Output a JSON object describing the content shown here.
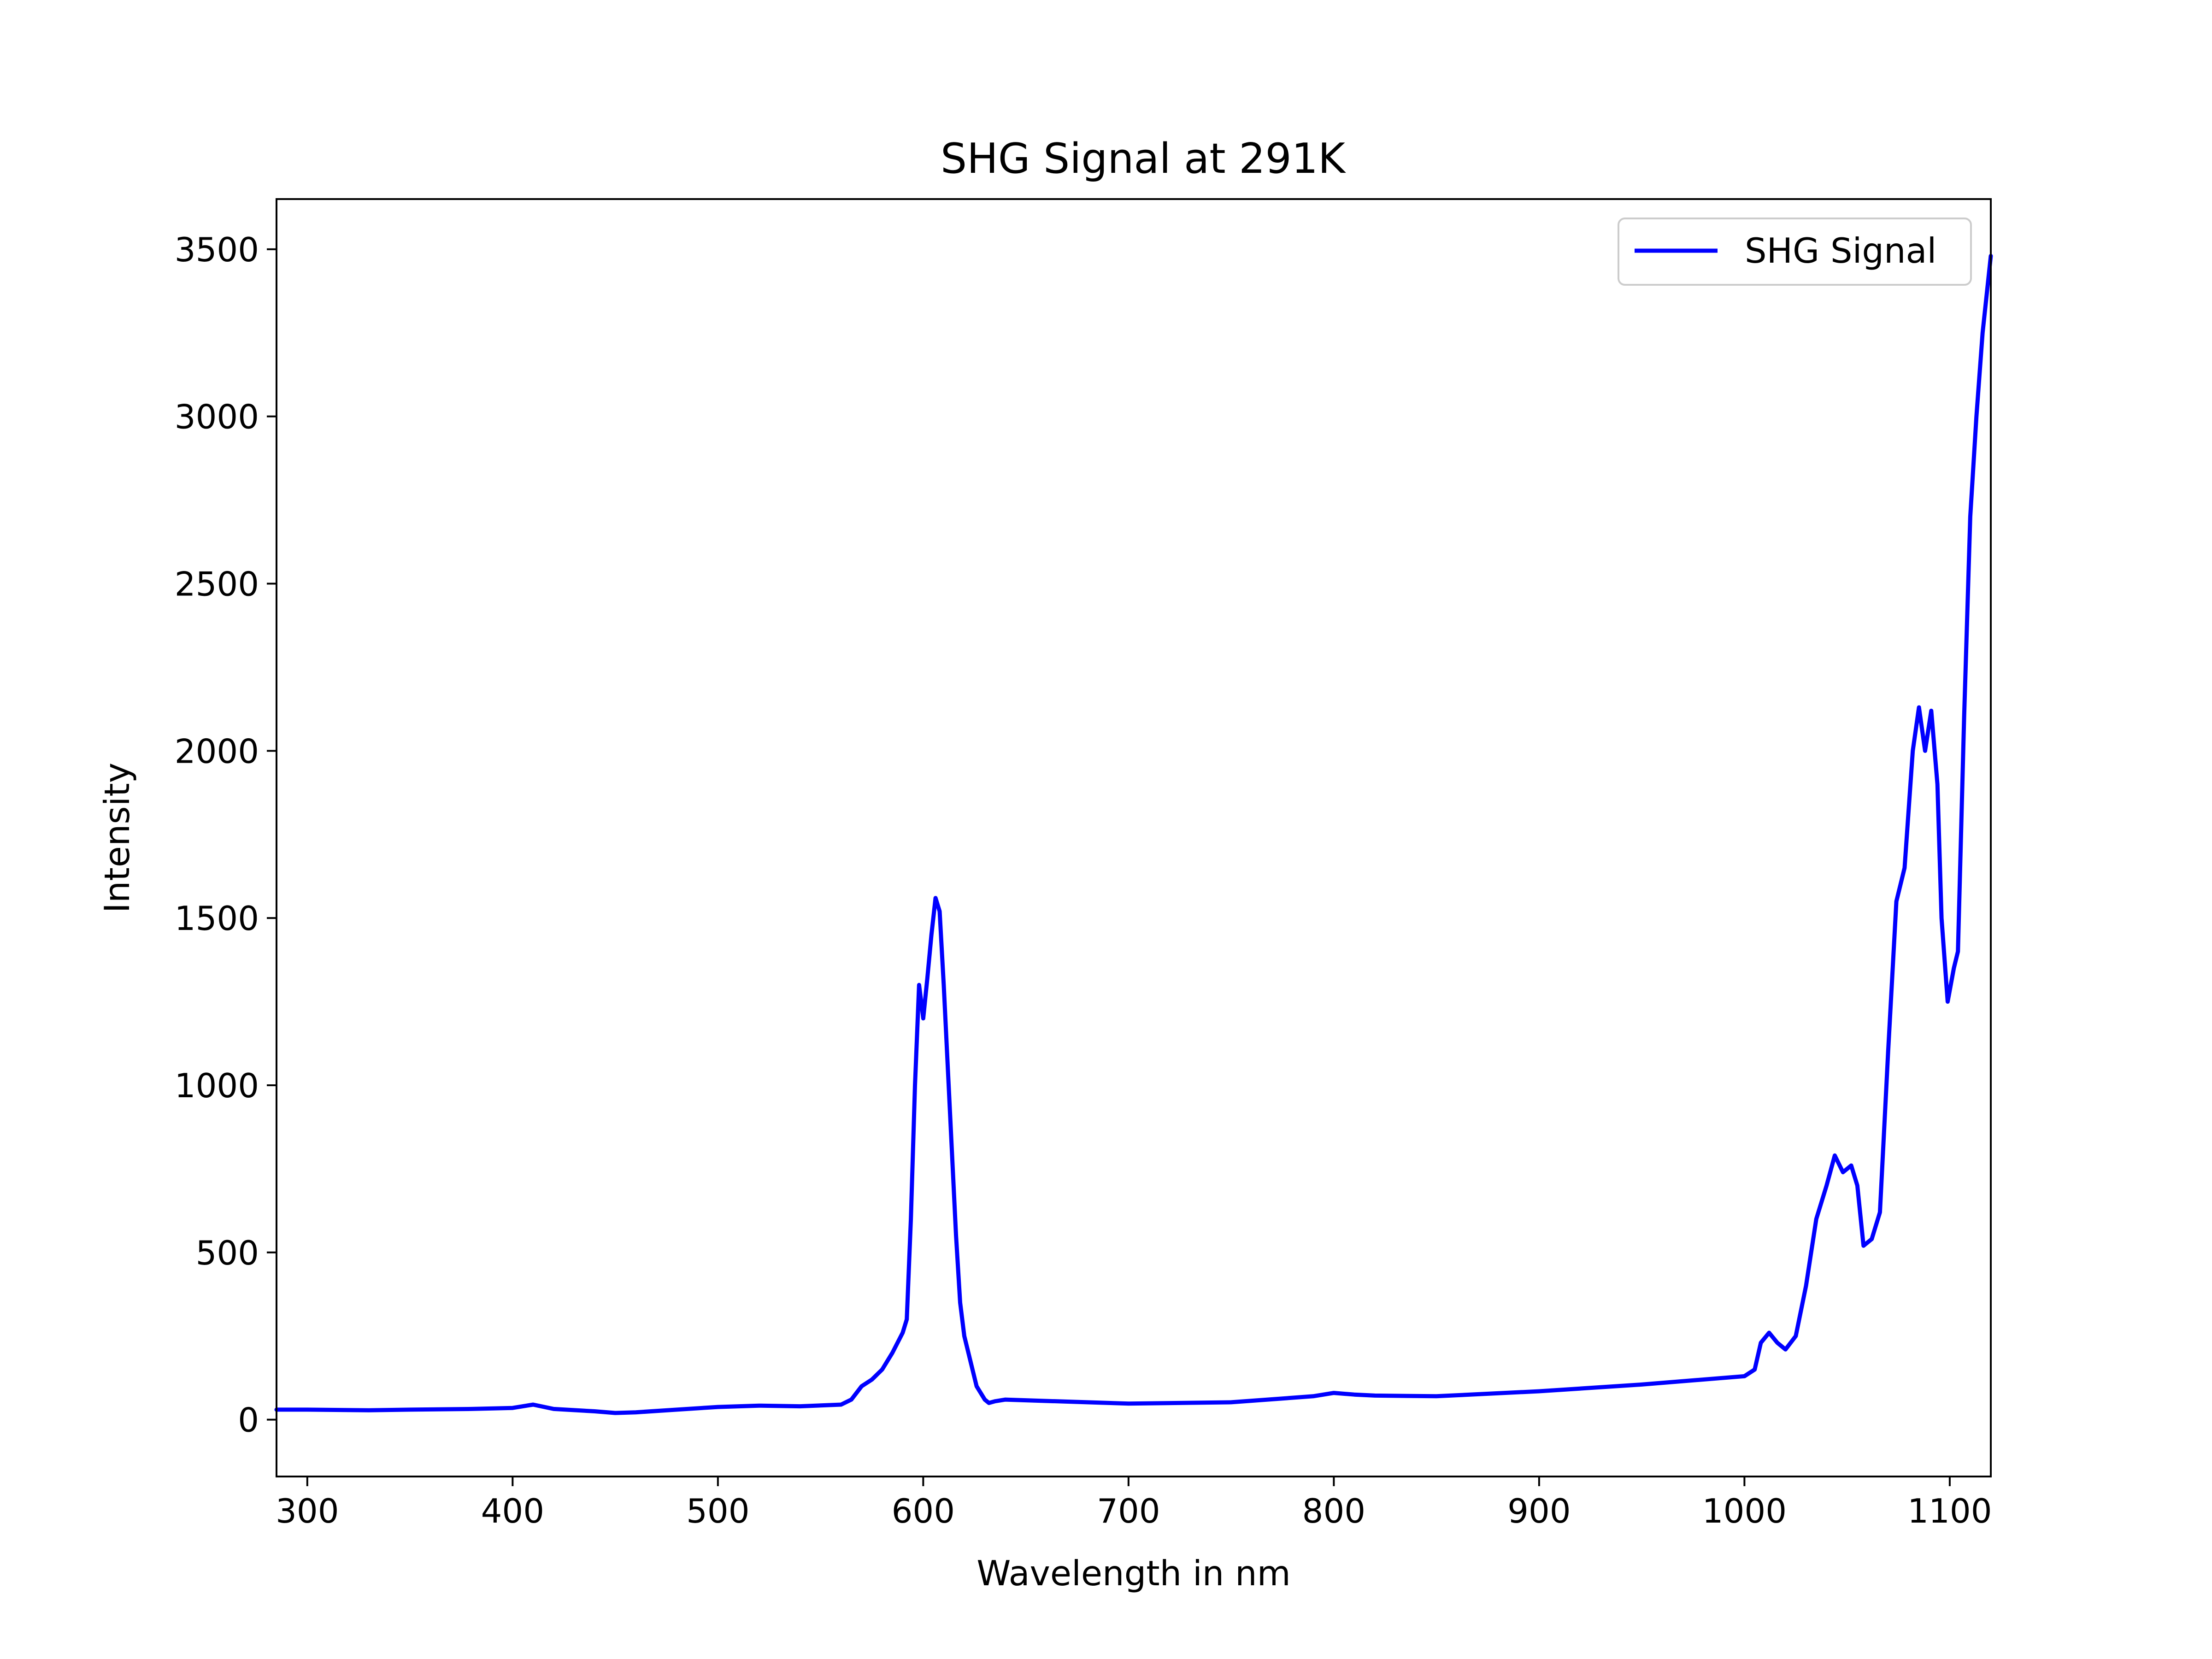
{
  "chart_data": {
    "type": "line",
    "title": "SHG Signal at 291K",
    "xlabel": "Wavelength in nm",
    "ylabel": "Intensity",
    "xlim": [
      285,
      1120
    ],
    "ylim": [
      -170,
      3650
    ],
    "xticks": [
      300,
      400,
      500,
      600,
      700,
      800,
      900,
      1000,
      1100
    ],
    "yticks": [
      0,
      500,
      1000,
      1500,
      2000,
      2500,
      3000,
      3500
    ],
    "grid": false,
    "legend_position": "top-right",
    "series": [
      {
        "name": "SHG Signal",
        "color": "#0000ff",
        "x": [
          285,
          300,
          330,
          350,
          380,
          400,
          410,
          420,
          440,
          450,
          460,
          480,
          500,
          520,
          540,
          560,
          565,
          570,
          575,
          580,
          585,
          590,
          592,
          594,
          596,
          598,
          600,
          602,
          604,
          606,
          608,
          610,
          612,
          614,
          616,
          618,
          620,
          622,
          624,
          626,
          628,
          630,
          632,
          635,
          640,
          650,
          700,
          750,
          790,
          800,
          810,
          820,
          850,
          900,
          950,
          1000,
          1005,
          1008,
          1012,
          1016,
          1020,
          1025,
          1030,
          1035,
          1040,
          1044,
          1048,
          1052,
          1055,
          1058,
          1062,
          1066,
          1070,
          1074,
          1078,
          1082,
          1085,
          1088,
          1091,
          1094,
          1096,
          1099,
          1102,
          1104,
          1107,
          1110,
          1113,
          1116,
          1120
        ],
        "values": [
          30,
          30,
          28,
          30,
          32,
          35,
          45,
          32,
          25,
          20,
          22,
          30,
          38,
          42,
          40,
          45,
          60,
          100,
          120,
          150,
          200,
          260,
          300,
          600,
          1000,
          1300,
          1200,
          1320,
          1450,
          1560,
          1520,
          1300,
          1050,
          800,
          550,
          350,
          250,
          200,
          150,
          100,
          80,
          60,
          50,
          55,
          60,
          58,
          48,
          52,
          70,
          80,
          75,
          72,
          70,
          85,
          105,
          130,
          150,
          230,
          260,
          230,
          210,
          250,
          400,
          600,
          700,
          790,
          740,
          760,
          700,
          520,
          540,
          620,
          1100,
          1550,
          1650,
          2000,
          2130,
          2000,
          2120,
          1900,
          1500,
          1250,
          1350,
          1400,
          2100,
          2700,
          3000,
          3250,
          3480
        ]
      }
    ]
  }
}
